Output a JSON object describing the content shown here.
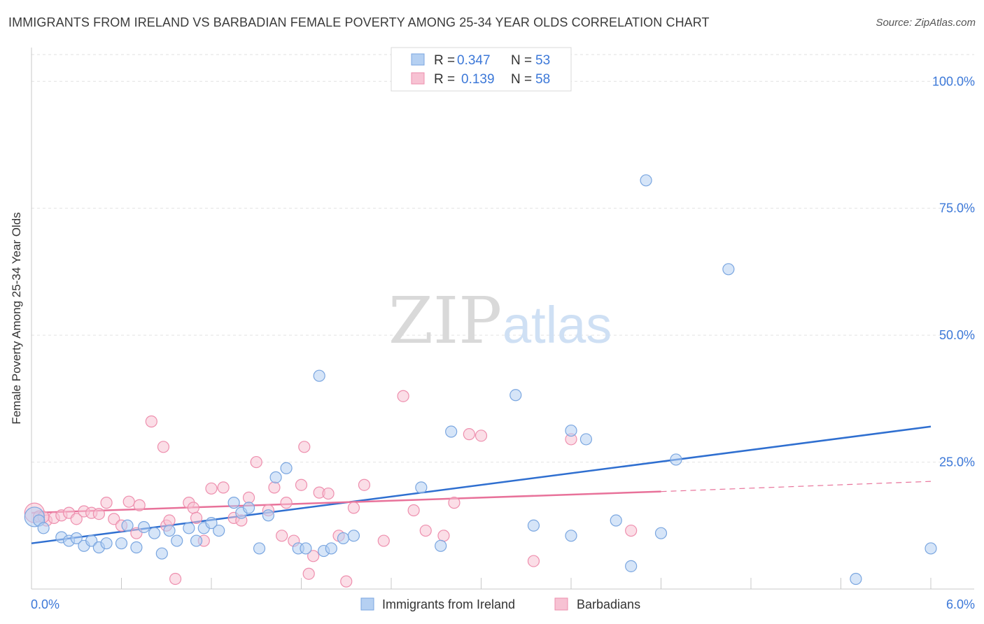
{
  "title": "IMMIGRANTS FROM IRELAND VS BARBADIAN FEMALE POVERTY AMONG 25-34 YEAR OLDS CORRELATION CHART",
  "source": "Source: ZipAtlas.com",
  "watermark": {
    "zip": "ZIP",
    "atlas": "atlas"
  },
  "colors": {
    "blue_fill": "#b5d0f2",
    "blue_stroke": "#7aa6e0",
    "blue_line": "#2f6fd0",
    "pink_fill": "#f7c2d3",
    "pink_stroke": "#ee8fae",
    "pink_line": "#e8729a",
    "axis_text": "#3c78d8"
  },
  "legend_top": [
    {
      "r_label": "R =",
      "r_value": "0.347",
      "n_label": "N =",
      "n_value": "53"
    },
    {
      "r_label": "R =",
      "r_value": "0.139",
      "n_label": "N =",
      "n_value": "58"
    }
  ],
  "legend_bottom": [
    "Immigrants from Ireland",
    "Barbadians"
  ],
  "chart_data": {
    "type": "scatter",
    "title": "IMMIGRANTS FROM IRELAND VS BARBADIAN FEMALE POVERTY AMONG 25-34 YEAR OLDS CORRELATION CHART",
    "xlabel": "",
    "ylabel": "Female Poverty Among 25-34 Year Olds",
    "xlim": [
      0,
      6.0
    ],
    "ylim": [
      0,
      105
    ],
    "x_tick_labels": [
      "0.0%",
      "6.0%"
    ],
    "y_ticks": [
      25,
      50,
      75,
      100
    ],
    "y_tick_labels": [
      "25.0%",
      "50.0%",
      "75.0%",
      "100.0%"
    ],
    "series": [
      {
        "name": "Immigrants from Ireland",
        "r": 0.347,
        "n": 53,
        "trend": {
          "x0": 0.0,
          "y0": 9.0,
          "x1": 6.0,
          "y1": 32.0
        },
        "points": [
          [
            0.02,
            14.2
          ],
          [
            0.05,
            13.5
          ],
          [
            0.08,
            12.0
          ],
          [
            0.2,
            10.2
          ],
          [
            0.25,
            9.5
          ],
          [
            0.3,
            10.0
          ],
          [
            0.35,
            8.5
          ],
          [
            0.4,
            9.5
          ],
          [
            0.45,
            8.2
          ],
          [
            0.5,
            9.0
          ],
          [
            0.6,
            9.0
          ],
          [
            0.64,
            12.5
          ],
          [
            0.7,
            8.2
          ],
          [
            0.75,
            12.2
          ],
          [
            0.82,
            11.0
          ],
          [
            0.87,
            7.0
          ],
          [
            0.92,
            11.5
          ],
          [
            0.97,
            9.5
          ],
          [
            1.05,
            12.0
          ],
          [
            1.1,
            9.5
          ],
          [
            1.15,
            12.0
          ],
          [
            1.2,
            13.0
          ],
          [
            1.25,
            11.5
          ],
          [
            1.35,
            17.0
          ],
          [
            1.4,
            15.0
          ],
          [
            1.45,
            16.0
          ],
          [
            1.52,
            8.0
          ],
          [
            1.58,
            14.5
          ],
          [
            1.63,
            22.0
          ],
          [
            1.7,
            23.8
          ],
          [
            1.78,
            8.0
          ],
          [
            1.83,
            8.0
          ],
          [
            1.92,
            42.0
          ],
          [
            1.95,
            7.5
          ],
          [
            2.0,
            8.0
          ],
          [
            2.08,
            10.0
          ],
          [
            2.15,
            10.5
          ],
          [
            2.6,
            20.0
          ],
          [
            2.73,
            8.5
          ],
          [
            2.8,
            31.0
          ],
          [
            3.23,
            38.2
          ],
          [
            3.35,
            12.5
          ],
          [
            3.6,
            31.2
          ],
          [
            3.6,
            10.5
          ],
          [
            3.7,
            29.5
          ],
          [
            3.9,
            13.5
          ],
          [
            4.0,
            4.5
          ],
          [
            4.1,
            80.5
          ],
          [
            4.2,
            11.0
          ],
          [
            4.3,
            25.5
          ],
          [
            4.65,
            63.0
          ],
          [
            5.5,
            2.0
          ],
          [
            6.0,
            8.0
          ]
        ]
      },
      {
        "name": "Barbadians",
        "r": 0.139,
        "n": 58,
        "trend": {
          "x0": 0.0,
          "y0": 15.0,
          "x1": 4.2,
          "y1": 19.2
        },
        "trend_dashed": {
          "x0": 4.2,
          "y0": 19.2,
          "x1": 6.0,
          "y1": 21.2
        },
        "points": [
          [
            0.02,
            15.0
          ],
          [
            0.05,
            14.3
          ],
          [
            0.1,
            13.5
          ],
          [
            0.15,
            14.0
          ],
          [
            0.2,
            14.5
          ],
          [
            0.25,
            15.0
          ],
          [
            0.3,
            13.8
          ],
          [
            0.35,
            15.3
          ],
          [
            0.4,
            15.0
          ],
          [
            0.45,
            14.8
          ],
          [
            0.5,
            17.0
          ],
          [
            0.55,
            13.8
          ],
          [
            0.6,
            12.5
          ],
          [
            0.65,
            17.2
          ],
          [
            0.7,
            11.0
          ],
          [
            0.72,
            16.5
          ],
          [
            0.8,
            33.0
          ],
          [
            0.88,
            28.0
          ],
          [
            0.9,
            12.5
          ],
          [
            0.92,
            13.5
          ],
          [
            0.96,
            2.0
          ],
          [
            1.05,
            17.0
          ],
          [
            1.08,
            16.0
          ],
          [
            1.1,
            14.0
          ],
          [
            1.15,
            9.5
          ],
          [
            1.2,
            19.8
          ],
          [
            1.28,
            20.0
          ],
          [
            1.35,
            14.0
          ],
          [
            1.4,
            13.5
          ],
          [
            1.45,
            18.0
          ],
          [
            1.5,
            25.0
          ],
          [
            1.58,
            15.5
          ],
          [
            1.62,
            20.0
          ],
          [
            1.67,
            10.5
          ],
          [
            1.7,
            17.0
          ],
          [
            1.75,
            9.5
          ],
          [
            1.8,
            20.5
          ],
          [
            1.82,
            28.0
          ],
          [
            1.85,
            3.0
          ],
          [
            1.88,
            6.5
          ],
          [
            1.92,
            19.0
          ],
          [
            1.98,
            18.8
          ],
          [
            2.05,
            10.5
          ],
          [
            2.1,
            1.5
          ],
          [
            2.15,
            16.0
          ],
          [
            2.22,
            20.5
          ],
          [
            2.35,
            9.5
          ],
          [
            2.48,
            38.0
          ],
          [
            2.55,
            15.5
          ],
          [
            2.63,
            11.5
          ],
          [
            2.75,
            10.5
          ],
          [
            2.82,
            17.0
          ],
          [
            2.92,
            30.5
          ],
          [
            3.0,
            30.2
          ],
          [
            3.35,
            5.5
          ],
          [
            3.6,
            29.5
          ],
          [
            4.0,
            11.5
          ],
          [
            0.08,
            14.2
          ]
        ]
      }
    ]
  }
}
